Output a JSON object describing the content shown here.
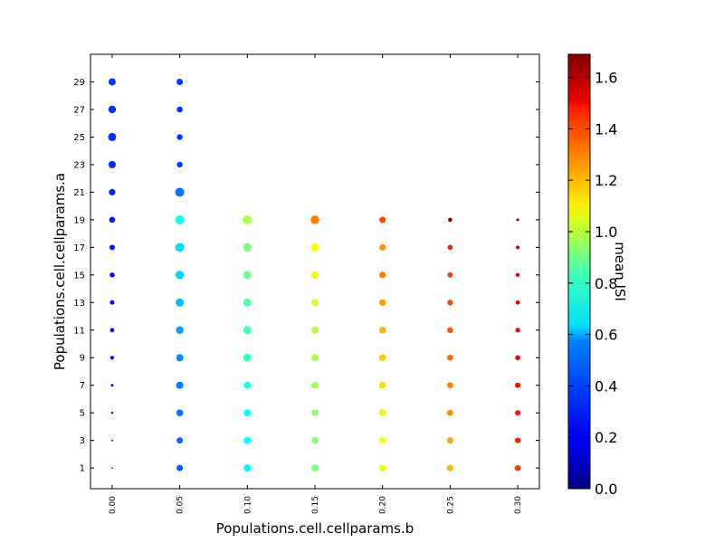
{
  "chart_data": {
    "type": "scatter",
    "xlabel": "Populations.cell.cellparams.b",
    "ylabel": "Populations.cell.cellparams.a",
    "colorbar_label": "mean ISI",
    "x_ticks": [
      0.0,
      0.05,
      0.1,
      0.15,
      0.2,
      0.25,
      0.3
    ],
    "x_tick_labels": [
      "0.00",
      "0.05",
      "0.10",
      "0.15",
      "0.20",
      "0.25",
      "0.30"
    ],
    "y_ticks": [
      1,
      3,
      5,
      7,
      9,
      11,
      13,
      15,
      17,
      19,
      21,
      23,
      25,
      27,
      29
    ],
    "y_tick_labels": [
      "1",
      "3",
      "5",
      "7",
      "9",
      "11",
      "13",
      "15",
      "17",
      "19",
      "21",
      "23",
      "25",
      "27",
      "29"
    ],
    "xlim": [
      -0.016,
      0.316
    ],
    "ylim": [
      -0.5,
      31.0
    ],
    "color_range": [
      0.0,
      1.69
    ],
    "colorbar_ticks": [
      0.0,
      0.2,
      0.4,
      0.6,
      0.8,
      1.0,
      1.2,
      1.4,
      1.6
    ],
    "colorbar_tick_labels": [
      "0.0",
      "0.2",
      "0.4",
      "0.6",
      "0.8",
      "1.0",
      "1.2",
      "1.4",
      "1.6"
    ],
    "size_encoding": "marker size varies per point",
    "points": [
      {
        "x": 0.0,
        "y": 1,
        "c": 0.15,
        "s": 0.8
      },
      {
        "x": 0.0,
        "y": 3,
        "c": 0.17,
        "s": 1.0
      },
      {
        "x": 0.0,
        "y": 5,
        "c": 0.18,
        "s": 1.2
      },
      {
        "x": 0.0,
        "y": 7,
        "c": 0.19,
        "s": 1.5
      },
      {
        "x": 0.0,
        "y": 9,
        "c": 0.2,
        "s": 2.0
      },
      {
        "x": 0.0,
        "y": 11,
        "c": 0.21,
        "s": 2.3
      },
      {
        "x": 0.0,
        "y": 13,
        "c": 0.22,
        "s": 2.5
      },
      {
        "x": 0.0,
        "y": 15,
        "c": 0.23,
        "s": 2.8
      },
      {
        "x": 0.0,
        "y": 17,
        "c": 0.24,
        "s": 3.0
      },
      {
        "x": 0.0,
        "y": 19,
        "c": 0.26,
        "s": 3.3
      },
      {
        "x": 0.0,
        "y": 21,
        "c": 0.27,
        "s": 3.6
      },
      {
        "x": 0.0,
        "y": 23,
        "c": 0.28,
        "s": 4.0
      },
      {
        "x": 0.0,
        "y": 25,
        "c": 0.29,
        "s": 4.5
      },
      {
        "x": 0.0,
        "y": 27,
        "c": 0.29,
        "s": 4.2
      },
      {
        "x": 0.0,
        "y": 29,
        "c": 0.3,
        "s": 4.0
      },
      {
        "x": 0.05,
        "y": 1,
        "c": 0.36,
        "s": 3.5
      },
      {
        "x": 0.05,
        "y": 3,
        "c": 0.38,
        "s": 3.5
      },
      {
        "x": 0.05,
        "y": 5,
        "c": 0.4,
        "s": 3.8
      },
      {
        "x": 0.05,
        "y": 7,
        "c": 0.42,
        "s": 4.0
      },
      {
        "x": 0.05,
        "y": 9,
        "c": 0.44,
        "s": 4.0
      },
      {
        "x": 0.05,
        "y": 11,
        "c": 0.48,
        "s": 4.2
      },
      {
        "x": 0.05,
        "y": 13,
        "c": 0.52,
        "s": 4.5
      },
      {
        "x": 0.05,
        "y": 15,
        "c": 0.56,
        "s": 4.7
      },
      {
        "x": 0.05,
        "y": 17,
        "c": 0.58,
        "s": 5.0
      },
      {
        "x": 0.05,
        "y": 19,
        "c": 0.66,
        "s": 5.0
      },
      {
        "x": 0.05,
        "y": 21,
        "c": 0.4,
        "s": 5.0
      },
      {
        "x": 0.05,
        "y": 23,
        "c": 0.3,
        "s": 3.2
      },
      {
        "x": 0.05,
        "y": 25,
        "c": 0.3,
        "s": 3.2
      },
      {
        "x": 0.05,
        "y": 27,
        "c": 0.3,
        "s": 3.3
      },
      {
        "x": 0.05,
        "y": 29,
        "c": 0.3,
        "s": 3.5
      },
      {
        "x": 0.1,
        "y": 1,
        "c": 0.62,
        "s": 4.0
      },
      {
        "x": 0.1,
        "y": 3,
        "c": 0.64,
        "s": 4.0
      },
      {
        "x": 0.1,
        "y": 5,
        "c": 0.66,
        "s": 4.0
      },
      {
        "x": 0.1,
        "y": 7,
        "c": 0.69,
        "s": 4.0
      },
      {
        "x": 0.1,
        "y": 9,
        "c": 0.72,
        "s": 4.5
      },
      {
        "x": 0.1,
        "y": 11,
        "c": 0.75,
        "s": 4.5
      },
      {
        "x": 0.1,
        "y": 13,
        "c": 0.78,
        "s": 4.5
      },
      {
        "x": 0.1,
        "y": 15,
        "c": 0.82,
        "s": 4.5
      },
      {
        "x": 0.1,
        "y": 17,
        "c": 0.85,
        "s": 4.8
      },
      {
        "x": 0.1,
        "y": 19,
        "c": 0.92,
        "s": 5.0
      },
      {
        "x": 0.15,
        "y": 1,
        "c": 0.84,
        "s": 4.0
      },
      {
        "x": 0.15,
        "y": 3,
        "c": 0.86,
        "s": 3.8
      },
      {
        "x": 0.15,
        "y": 5,
        "c": 0.88,
        "s": 3.8
      },
      {
        "x": 0.15,
        "y": 7,
        "c": 0.9,
        "s": 4.0
      },
      {
        "x": 0.15,
        "y": 9,
        "c": 0.92,
        "s": 4.0
      },
      {
        "x": 0.15,
        "y": 11,
        "c": 0.95,
        "s": 4.0
      },
      {
        "x": 0.15,
        "y": 13,
        "c": 0.98,
        "s": 4.0
      },
      {
        "x": 0.15,
        "y": 15,
        "c": 1.02,
        "s": 4.2
      },
      {
        "x": 0.15,
        "y": 17,
        "c": 1.06,
        "s": 4.5
      },
      {
        "x": 0.15,
        "y": 19,
        "c": 1.26,
        "s": 4.8
      },
      {
        "x": 0.2,
        "y": 1,
        "c": 1.02,
        "s": 3.8
      },
      {
        "x": 0.2,
        "y": 3,
        "c": 1.05,
        "s": 3.8
      },
      {
        "x": 0.2,
        "y": 5,
        "c": 1.08,
        "s": 3.8
      },
      {
        "x": 0.2,
        "y": 7,
        "c": 1.11,
        "s": 3.8
      },
      {
        "x": 0.2,
        "y": 9,
        "c": 1.14,
        "s": 3.8
      },
      {
        "x": 0.2,
        "y": 11,
        "c": 1.18,
        "s": 3.8
      },
      {
        "x": 0.2,
        "y": 13,
        "c": 1.22,
        "s": 3.7
      },
      {
        "x": 0.2,
        "y": 15,
        "c": 1.27,
        "s": 3.6
      },
      {
        "x": 0.2,
        "y": 17,
        "c": 1.23,
        "s": 3.6
      },
      {
        "x": 0.2,
        "y": 19,
        "c": 1.36,
        "s": 3.6
      },
      {
        "x": 0.25,
        "y": 1,
        "c": 1.18,
        "s": 3.6
      },
      {
        "x": 0.25,
        "y": 3,
        "c": 1.21,
        "s": 3.5
      },
      {
        "x": 0.25,
        "y": 5,
        "c": 1.24,
        "s": 3.4
      },
      {
        "x": 0.25,
        "y": 7,
        "c": 1.27,
        "s": 3.4
      },
      {
        "x": 0.25,
        "y": 9,
        "c": 1.3,
        "s": 3.3
      },
      {
        "x": 0.25,
        "y": 11,
        "c": 1.33,
        "s": 3.3
      },
      {
        "x": 0.25,
        "y": 13,
        "c": 1.36,
        "s": 3.2
      },
      {
        "x": 0.25,
        "y": 15,
        "c": 1.39,
        "s": 3.0
      },
      {
        "x": 0.25,
        "y": 17,
        "c": 1.44,
        "s": 2.8
      },
      {
        "x": 0.25,
        "y": 19,
        "c": 1.68,
        "s": 2.3
      },
      {
        "x": 0.3,
        "y": 1,
        "c": 1.38,
        "s": 3.3
      },
      {
        "x": 0.3,
        "y": 3,
        "c": 1.42,
        "s": 3.2
      },
      {
        "x": 0.3,
        "y": 5,
        "c": 1.45,
        "s": 3.0
      },
      {
        "x": 0.3,
        "y": 7,
        "c": 1.47,
        "s": 3.0
      },
      {
        "x": 0.3,
        "y": 9,
        "c": 1.49,
        "s": 2.8
      },
      {
        "x": 0.3,
        "y": 11,
        "c": 1.5,
        "s": 2.6
      },
      {
        "x": 0.3,
        "y": 13,
        "c": 1.52,
        "s": 2.4
      },
      {
        "x": 0.3,
        "y": 15,
        "c": 1.54,
        "s": 2.2
      },
      {
        "x": 0.3,
        "y": 17,
        "c": 1.58,
        "s": 2.0
      },
      {
        "x": 0.3,
        "y": 19,
        "c": 1.69,
        "s": 1.5
      }
    ]
  }
}
